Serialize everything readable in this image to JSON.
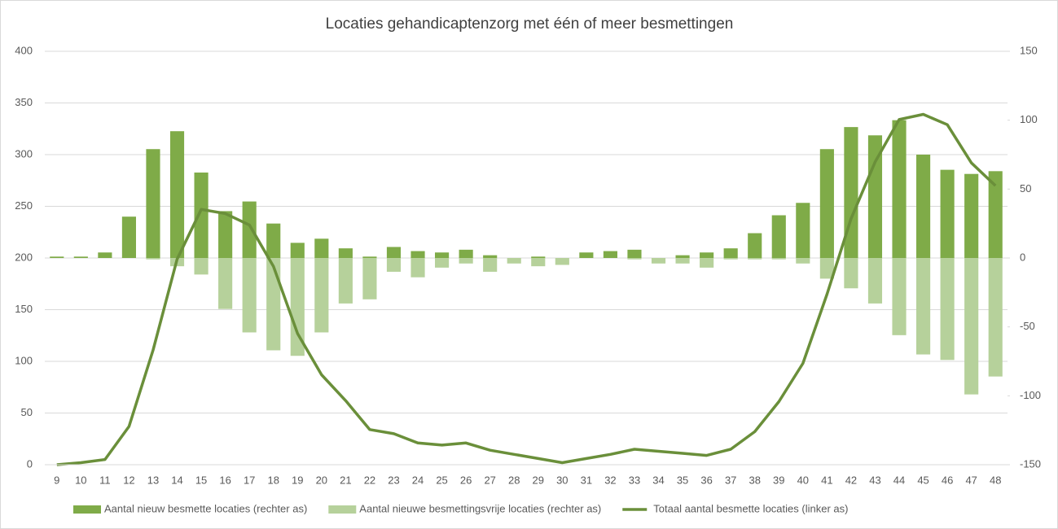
{
  "chart_data": {
    "type": "bar",
    "title": "Locaties gehandicaptenzorg met één of meer besmettingen",
    "categories": [
      "9",
      "10",
      "11",
      "12",
      "13",
      "14",
      "15",
      "16",
      "17",
      "18",
      "19",
      "20",
      "21",
      "22",
      "23",
      "24",
      "25",
      "26",
      "27",
      "28",
      "29",
      "30",
      "31",
      "32",
      "33",
      "34",
      "35",
      "36",
      "37",
      "38",
      "39",
      "40",
      "41",
      "42",
      "43",
      "44",
      "45",
      "46",
      "47",
      "48"
    ],
    "series": [
      {
        "name": "Aantal nieuw besmette locaties (rechter as)",
        "type": "bar",
        "axis": "y2",
        "color": "#7fab48",
        "values": [
          1,
          1,
          4,
          30,
          79,
          92,
          62,
          34,
          41,
          25,
          11,
          14,
          7,
          1,
          8,
          5,
          4,
          6,
          2,
          0,
          1,
          0,
          4,
          5,
          6,
          0,
          2,
          4,
          7,
          18,
          31,
          40,
          79,
          95,
          89,
          100,
          75,
          64,
          61,
          63
        ]
      },
      {
        "name": "Aantal nieuwe besmettingsvrije locaties (rechter as)",
        "type": "bar",
        "axis": "y2",
        "color": "#b6d19b",
        "values": [
          0,
          0,
          0,
          0,
          -1,
          -6,
          -12,
          -37,
          -54,
          -67,
          -71,
          -54,
          -33,
          -30,
          -10,
          -14,
          -7,
          -4,
          -10,
          -4,
          -6,
          -5,
          0,
          0,
          -1,
          -4,
          -4,
          -7,
          -1,
          -1,
          -1,
          -4,
          -15,
          -22,
          -33,
          -56,
          -70,
          -74,
          -99,
          -86
        ]
      },
      {
        "name": "Totaal aantal besmette locaties (linker as)",
        "type": "line",
        "axis": "y",
        "color": "#6a8f3a",
        "values": [
          0,
          2,
          5,
          37,
          111,
          199,
          247,
          243,
          232,
          192,
          127,
          87,
          62,
          34,
          30,
          21,
          19,
          21,
          14,
          10,
          6,
          2,
          6,
          10,
          15,
          13,
          11,
          9,
          15,
          32,
          61,
          98,
          165,
          238,
          293,
          334,
          339,
          329,
          292,
          270
        ]
      }
    ],
    "ylim": [
      0,
      400
    ],
    "yticks": [
      0,
      50,
      100,
      150,
      200,
      250,
      300,
      350,
      400
    ],
    "y2lim": [
      -150,
      150
    ],
    "y2ticks": [
      -150,
      -100,
      -50,
      0,
      50,
      100,
      150
    ],
    "grid": true,
    "legend": "bottom"
  }
}
